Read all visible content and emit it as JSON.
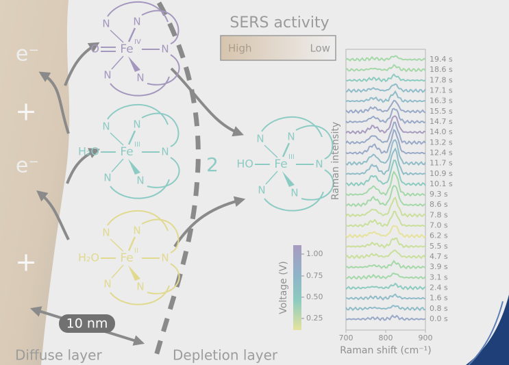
{
  "title": "SERS activity",
  "scale": {
    "high": "High",
    "low": "Low"
  },
  "charges": [
    "e⁻",
    "+",
    "e⁻",
    "+"
  ],
  "scale_bar": "10 nm",
  "layers": [
    "Diffuse layer",
    "Depletion layer"
  ],
  "molecules": [
    {
      "ligand": "O",
      "metal": "Fe",
      "oxidation": "IV",
      "nitrogens": [
        "N",
        "N",
        "N",
        "N",
        "N"
      ]
    },
    {
      "ligand": "H₂O",
      "metal": "Fe",
      "oxidation": "III",
      "nitrogens": [
        "N",
        "N",
        "N",
        "N",
        "N"
      ]
    },
    {
      "ligand": "H₂O",
      "metal": "Fe",
      "oxidation": "II",
      "nitrogens": [
        "N",
        "N",
        "N",
        "N",
        "N"
      ]
    },
    {
      "coefficient": "2",
      "ligand": "HO",
      "metal": "Fe",
      "oxidation": "III",
      "nitrogens": [
        "N",
        "N",
        "N",
        "N",
        "N"
      ]
    }
  ],
  "spectra": {
    "y_label": "Raman intensity",
    "x_label": "Raman shift (cm⁻¹)",
    "xticks": [
      700,
      800,
      900
    ],
    "times": [
      "19.4 s",
      "18.6 s",
      "17.8 s",
      "17.1 s",
      "16.3 s",
      "15.5 s",
      "14.7 s",
      "14.0 s",
      "13.2 s",
      "12.4 s",
      "11.7 s",
      "10.9 s",
      "10.1 s",
      "9.3 s",
      "8.6 s",
      "7.8 s",
      "7.0 s",
      "6.2 s",
      "5.5 s",
      "4.7 s",
      "3.9 s",
      "3.1 s",
      "2.4 s",
      "1.6 s",
      "0.8 s",
      "0.0 s"
    ],
    "colorbar": {
      "label": "Voltage (V)",
      "ticks": [
        "1.00",
        "0.75",
        "0.50",
        "0.25"
      ]
    }
  }
}
